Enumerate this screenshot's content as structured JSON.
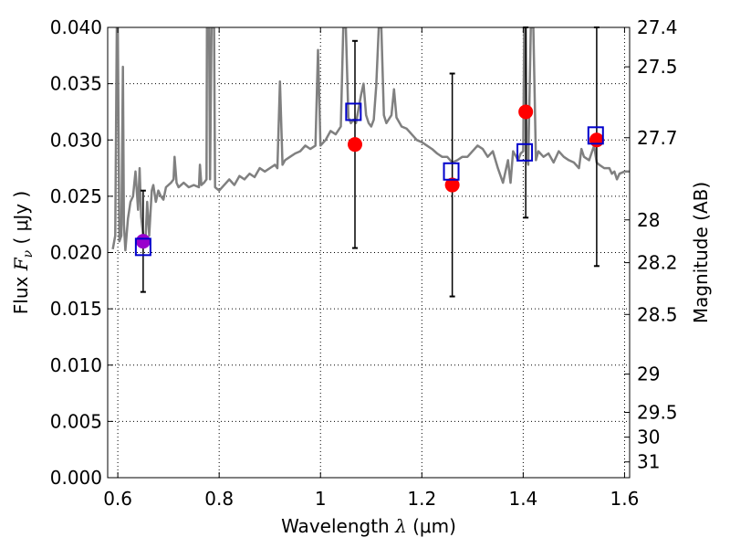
{
  "chart_data": {
    "type": "scatter",
    "title": "",
    "xlabel": {
      "prefix": "Wavelength  ",
      "symbol": "λ",
      "unit": " (μm)"
    },
    "ylabel": {
      "prefix": "Flux  ",
      "symbol": "F",
      "subscript": "ν",
      "unit": "  ( μJy )"
    },
    "y2label": "Magnitude (AB)",
    "xlim": [
      0.58,
      1.61
    ],
    "ylim": [
      0.0,
      0.04
    ],
    "grid": true,
    "x_ticks": [
      0.6,
      0.8,
      1.0,
      1.2,
      1.4,
      1.6
    ],
    "x_tick_labels": [
      "",
      "0.8",
      "1",
      "1.2",
      "1.4",
      "1.6"
    ],
    "y_ticks": [
      0.0,
      0.005,
      0.01,
      0.015,
      0.02,
      0.025,
      0.03,
      0.035,
      0.04
    ],
    "y_tick_labels": [
      "0.000",
      "0.005",
      "0.010",
      "0.015",
      "0.020",
      "0.025",
      "0.030",
      "0.035",
      "0.040"
    ],
    "y2_ticks": [
      {
        "label": "27.4",
        "flux": 0.04
      },
      {
        "label": "27.5",
        "flux": 0.0365
      },
      {
        "label": "27.7",
        "flux": 0.0302
      },
      {
        "label": "28",
        "flux": 0.0229
      },
      {
        "label": "28.2",
        "flux": 0.0191
      },
      {
        "label": "28.5",
        "flux": 0.0145
      },
      {
        "label": "29",
        "flux": 0.0092
      },
      {
        "label": "29.5",
        "flux": 0.0058
      },
      {
        "label": "30",
        "flux": 0.0036
      },
      {
        "label": "31",
        "flux": 0.0014
      }
    ],
    "colors": {
      "spectrum": "#808080",
      "observed": "#ff0000",
      "model": "#0000cc",
      "highlight": "#9900cc",
      "errorbar": "#000000",
      "grid": "#000000"
    },
    "series": [
      {
        "type": "line",
        "points": [
          [
            0.59,
            0.0203
          ],
          [
            0.595,
            0.0215
          ],
          [
            0.598,
            0.04
          ],
          [
            0.6,
            0.04
          ],
          [
            0.603,
            0.021
          ],
          [
            0.607,
            0.0215
          ],
          [
            0.61,
            0.0365
          ],
          [
            0.612,
            0.0225
          ],
          [
            0.615,
            0.0202
          ],
          [
            0.62,
            0.023
          ],
          [
            0.625,
            0.0245
          ],
          [
            0.63,
            0.025
          ],
          [
            0.635,
            0.0272
          ],
          [
            0.64,
            0.0238
          ],
          [
            0.643,
            0.0275
          ],
          [
            0.646,
            0.0232
          ],
          [
            0.65,
            0.0215
          ],
          [
            0.655,
            0.0215
          ],
          [
            0.658,
            0.0245
          ],
          [
            0.662,
            0.0215
          ],
          [
            0.667,
            0.0255
          ],
          [
            0.67,
            0.026
          ],
          [
            0.675,
            0.0245
          ],
          [
            0.68,
            0.0255
          ],
          [
            0.685,
            0.025
          ],
          [
            0.69,
            0.0247
          ],
          [
            0.695,
            0.0258
          ],
          [
            0.7,
            0.026
          ],
          [
            0.705,
            0.0262
          ],
          [
            0.71,
            0.0265
          ],
          [
            0.712,
            0.0285
          ],
          [
            0.716,
            0.0262
          ],
          [
            0.72,
            0.0258
          ],
          [
            0.73,
            0.0262
          ],
          [
            0.74,
            0.0258
          ],
          [
            0.75,
            0.026
          ],
          [
            0.76,
            0.0258
          ],
          [
            0.762,
            0.0278
          ],
          [
            0.765,
            0.026
          ],
          [
            0.77,
            0.0262
          ],
          [
            0.775,
            0.0265
          ],
          [
            0.776,
            0.04
          ],
          [
            0.78,
            0.04
          ],
          [
            0.782,
            0.0265
          ],
          [
            0.785,
            0.04
          ],
          [
            0.79,
            0.04
          ],
          [
            0.792,
            0.0258
          ],
          [
            0.8,
            0.0255
          ],
          [
            0.81,
            0.026
          ],
          [
            0.82,
            0.0265
          ],
          [
            0.83,
            0.026
          ],
          [
            0.84,
            0.0268
          ],
          [
            0.85,
            0.0265
          ],
          [
            0.86,
            0.027
          ],
          [
            0.87,
            0.0267
          ],
          [
            0.88,
            0.0275
          ],
          [
            0.89,
            0.0272
          ],
          [
            0.9,
            0.0275
          ],
          [
            0.91,
            0.0278
          ],
          [
            0.915,
            0.0275
          ],
          [
            0.92,
            0.0352
          ],
          [
            0.925,
            0.0278
          ],
          [
            0.93,
            0.0282
          ],
          [
            0.94,
            0.0285
          ],
          [
            0.95,
            0.0288
          ],
          [
            0.96,
            0.029
          ],
          [
            0.97,
            0.0295
          ],
          [
            0.98,
            0.0292
          ],
          [
            0.99,
            0.0295
          ],
          [
            0.995,
            0.038
          ],
          [
            1.0,
            0.0295
          ],
          [
            1.01,
            0.03
          ],
          [
            1.02,
            0.0308
          ],
          [
            1.03,
            0.0305
          ],
          [
            1.04,
            0.0312
          ],
          [
            1.045,
            0.04
          ],
          [
            1.05,
            0.04
          ],
          [
            1.055,
            0.032
          ],
          [
            1.06,
            0.0315
          ],
          [
            1.065,
            0.0318
          ],
          [
            1.07,
            0.0315
          ],
          [
            1.08,
            0.034
          ],
          [
            1.085,
            0.035
          ],
          [
            1.09,
            0.0322
          ],
          [
            1.095,
            0.0315
          ],
          [
            1.1,
            0.0312
          ],
          [
            1.105,
            0.0318
          ],
          [
            1.11,
            0.0348
          ],
          [
            1.115,
            0.04
          ],
          [
            1.12,
            0.04
          ],
          [
            1.125,
            0.0322
          ],
          [
            1.13,
            0.0315
          ],
          [
            1.14,
            0.0322
          ],
          [
            1.145,
            0.0345
          ],
          [
            1.15,
            0.032
          ],
          [
            1.16,
            0.0312
          ],
          [
            1.17,
            0.031
          ],
          [
            1.18,
            0.0305
          ],
          [
            1.19,
            0.03
          ],
          [
            1.2,
            0.0298
          ],
          [
            1.21,
            0.0295
          ],
          [
            1.22,
            0.0292
          ],
          [
            1.23,
            0.0288
          ],
          [
            1.24,
            0.0285
          ],
          [
            1.25,
            0.0285
          ],
          [
            1.26,
            0.028
          ],
          [
            1.27,
            0.0282
          ],
          [
            1.28,
            0.0285
          ],
          [
            1.29,
            0.0285
          ],
          [
            1.3,
            0.029
          ],
          [
            1.31,
            0.0295
          ],
          [
            1.32,
            0.0292
          ],
          [
            1.33,
            0.0285
          ],
          [
            1.34,
            0.029
          ],
          [
            1.35,
            0.0275
          ],
          [
            1.36,
            0.0262
          ],
          [
            1.37,
            0.0282
          ],
          [
            1.375,
            0.0262
          ],
          [
            1.38,
            0.029
          ],
          [
            1.39,
            0.0282
          ],
          [
            1.395,
            0.0288
          ],
          [
            1.4,
            0.029
          ],
          [
            1.402,
            0.04
          ],
          [
            1.405,
            0.04
          ],
          [
            1.407,
            0.0285
          ],
          [
            1.41,
            0.0278
          ],
          [
            1.415,
            0.04
          ],
          [
            1.42,
            0.04
          ],
          [
            1.425,
            0.0282
          ],
          [
            1.43,
            0.029
          ],
          [
            1.44,
            0.0285
          ],
          [
            1.45,
            0.0288
          ],
          [
            1.46,
            0.028
          ],
          [
            1.47,
            0.029
          ],
          [
            1.48,
            0.0285
          ],
          [
            1.49,
            0.0282
          ],
          [
            1.5,
            0.028
          ],
          [
            1.51,
            0.0275
          ],
          [
            1.515,
            0.0292
          ],
          [
            1.52,
            0.0285
          ],
          [
            1.53,
            0.0282
          ],
          [
            1.54,
            0.0295
          ],
          [
            1.545,
            0.028
          ],
          [
            1.55,
            0.0278
          ],
          [
            1.56,
            0.0275
          ],
          [
            1.57,
            0.0275
          ],
          [
            1.575,
            0.027
          ],
          [
            1.58,
            0.0272
          ],
          [
            1.585,
            0.0265
          ],
          [
            1.59,
            0.027
          ],
          [
            1.6,
            0.0272
          ],
          [
            1.61,
            0.0272
          ]
        ]
      },
      {
        "type": "scatter",
        "marker": "circle",
        "x": [
          1.068,
          1.26,
          1.405,
          1.545
        ],
        "y": [
          0.0296,
          0.026,
          0.0325,
          0.03
        ]
      },
      {
        "type": "scatter",
        "marker": "circle",
        "x": [
          0.65
        ],
        "y": [
          0.021
        ]
      },
      {
        "type": "scatter",
        "marker": "open-square",
        "x": [
          0.65,
          1.065,
          1.258,
          1.403,
          1.543
        ],
        "y": [
          0.0205,
          0.0325,
          0.0272,
          0.0289,
          0.0304
        ]
      },
      {
        "type": "errorbar",
        "x": [
          0.65,
          1.068,
          1.26,
          1.405,
          1.545
        ],
        "ylow": [
          0.0165,
          0.0204,
          0.0161,
          0.0231,
          0.0188
        ],
        "yhigh": [
          0.0255,
          0.0388,
          0.0359,
          0.04,
          0.04
        ]
      }
    ]
  }
}
